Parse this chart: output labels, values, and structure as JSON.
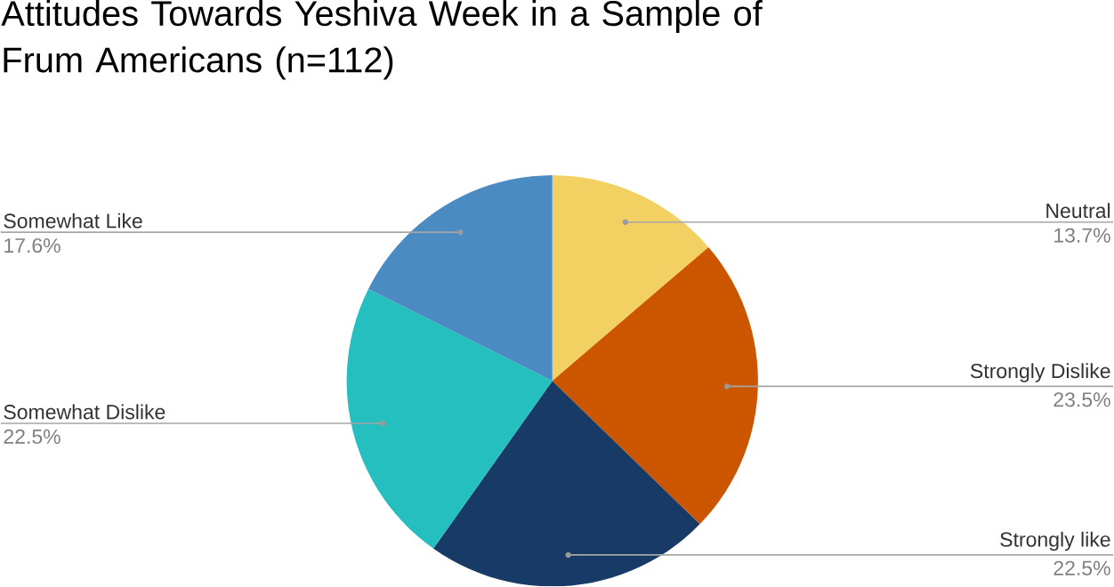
{
  "chart_data": {
    "type": "pie",
    "title": "Attitudes Towards Yeshiva Week in a Sample of Frum Americans (n=112)",
    "categories": [
      "Neutral",
      "Strongly Dislike",
      "Strongly like",
      "Somewhat Dislike",
      "Somewhat Like"
    ],
    "values": [
      13.7,
      23.5,
      22.5,
      22.5,
      17.6
    ],
    "value_labels": [
      "13.7%",
      "23.5%",
      "22.5%",
      "22.5%",
      "17.6%"
    ],
    "colors": [
      "#f2d162",
      "#cc5500",
      "#173b66",
      "#26bfbf",
      "#4a8bc2"
    ]
  }
}
